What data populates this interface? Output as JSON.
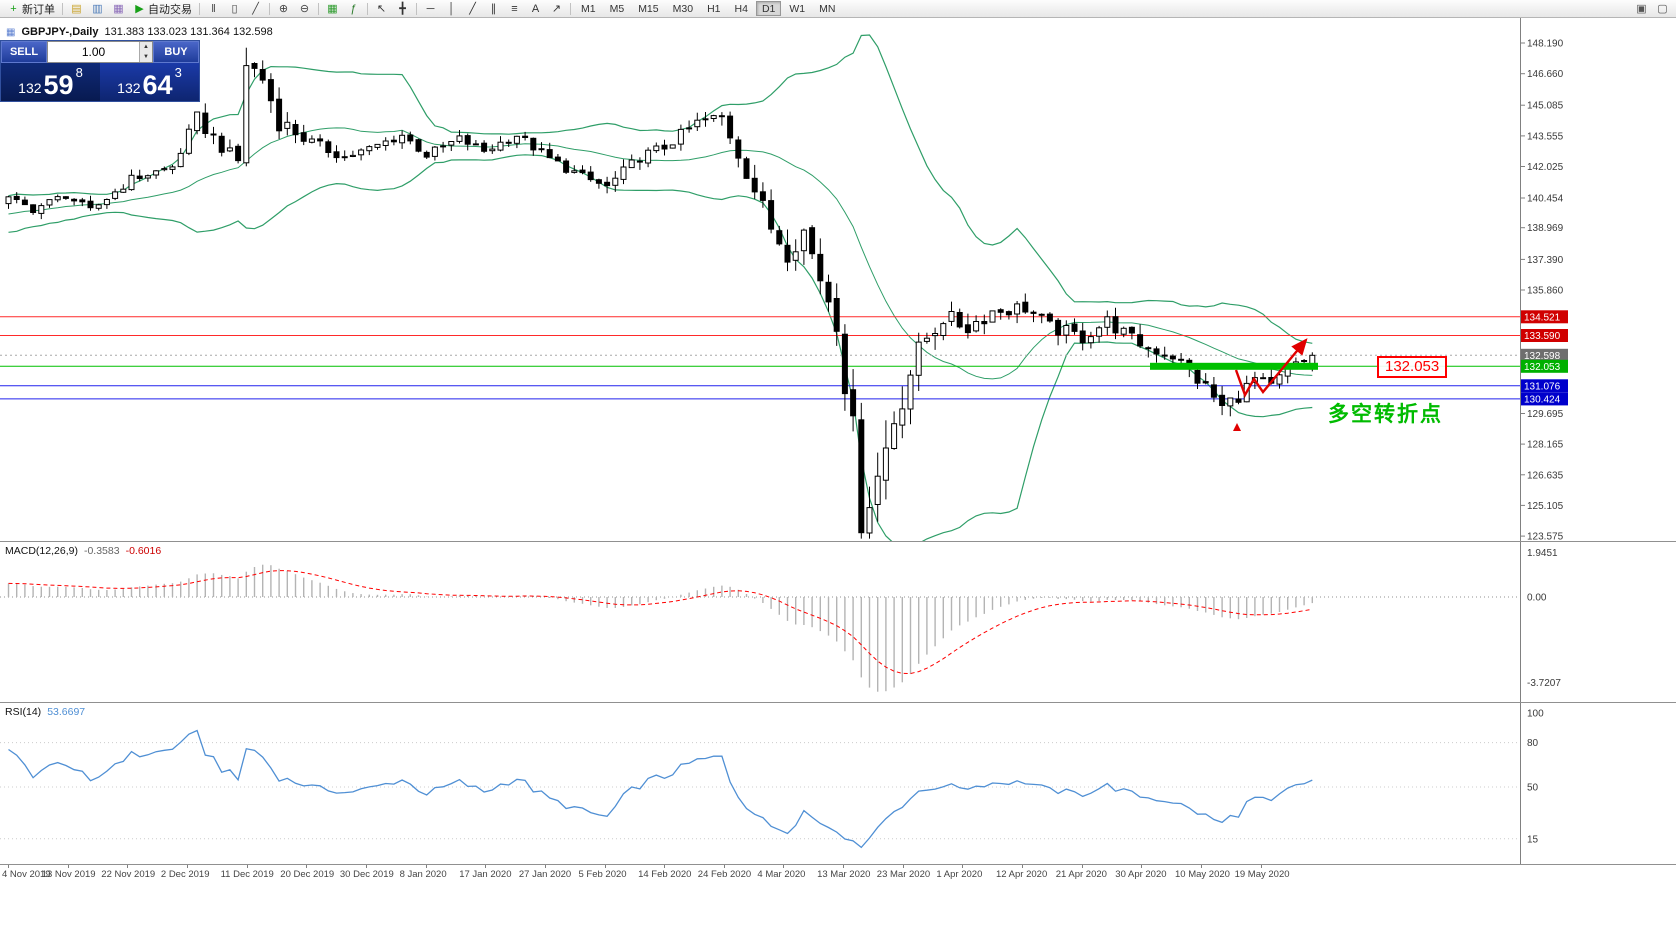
{
  "colors": {
    "band": "#2f9e68",
    "candle_up": "#ffffff",
    "candle_down": "#000000",
    "candle_border": "#000000",
    "macd_hist": "#b4b4b4",
    "macd_signal": "#ff0000",
    "rsi_line": "#4f8fd4",
    "axis_text": "#3a3a3a",
    "annotation_red": "#e00000"
  },
  "toolbar": {
    "items": [
      {
        "t": "btn",
        "base": "new-order",
        "glyph": "+",
        "gc": "#18a018",
        "label": "新订单"
      },
      {
        "t": "sep"
      },
      {
        "t": "ico",
        "base": "new-chart",
        "glyph": "▤",
        "gc": "#c9a227"
      },
      {
        "t": "ico",
        "base": "profiles",
        "glyph": "▥",
        "gc": "#4a7ab8"
      },
      {
        "t": "ico",
        "base": "data-window",
        "glyph": "▦",
        "gc": "#8a6ab8"
      },
      {
        "t": "btn",
        "base": "auto-trading",
        "glyph": "▶",
        "gc": "#18a018",
        "label": "自动交易"
      },
      {
        "t": "sep"
      },
      {
        "t": "ico",
        "base": "bar-chart",
        "glyph": "‖",
        "gc": "#444444"
      },
      {
        "t": "ico",
        "base": "candlestick-chart",
        "glyph": "▯",
        "gc": "#444444"
      },
      {
        "t": "ico",
        "base": "line-chart",
        "glyph": "╱",
        "gc": "#444444"
      },
      {
        "t": "sep"
      },
      {
        "t": "ico",
        "base": "zoom-in",
        "glyph": "⊕",
        "gc": "#444444"
      },
      {
        "t": "ico",
        "base": "zoom-out",
        "glyph": "⊖",
        "gc": "#444444"
      },
      {
        "t": "sep"
      },
      {
        "t": "ico",
        "base": "grid",
        "glyph": "▦",
        "gc": "#2a9a2a"
      },
      {
        "t": "ico",
        "base": "indicators",
        "glyph": "ƒ",
        "gc": "#2a7a2a"
      },
      {
        "t": "sep"
      },
      {
        "t": "ico",
        "base": "cursor",
        "glyph": "↖",
        "gc": "#333333"
      },
      {
        "t": "ico",
        "base": "crosshair",
        "glyph": "╋",
        "gc": "#333333"
      },
      {
        "t": "sep"
      },
      {
        "t": "ico",
        "base": "horizontal-line",
        "glyph": "─",
        "gc": "#333333"
      },
      {
        "t": "ico",
        "base": "vertical-line",
        "glyph": "│",
        "gc": "#333333"
      },
      {
        "t": "ico",
        "base": "trendline",
        "glyph": "╱",
        "gc": "#333333"
      },
      {
        "t": "ico",
        "base": "channel",
        "glyph": "∥",
        "gc": "#333333"
      },
      {
        "t": "ico",
        "base": "fibonacci",
        "glyph": "≡",
        "gc": "#333333"
      },
      {
        "t": "ico",
        "base": "text-label",
        "glyph": "A",
        "gc": "#333333"
      },
      {
        "t": "ico",
        "base": "arrows",
        "glyph": "↗",
        "gc": "#333333"
      },
      {
        "t": "sep"
      }
    ],
    "timeframes": [
      "M1",
      "M5",
      "M15",
      "M30",
      "H1",
      "H4",
      "D1",
      "W1",
      "MN"
    ],
    "active_timeframe": "D1",
    "right_items": [
      {
        "base": "tile-windows",
        "glyph": "▣",
        "gc": "#555555"
      },
      {
        "base": "new-window",
        "glyph": "▢",
        "gc": "#555555"
      }
    ]
  },
  "window": {
    "symbol_title": "GBPJPY-,Daily",
    "ohlc": "131.383 133.023 131.364 132.598"
  },
  "trade_panel": {
    "sell_label": "SELL",
    "buy_label": "BUY",
    "volume": "1.00",
    "sell_price": {
      "main": "132",
      "big": "59",
      "sup": "8"
    },
    "buy_price": {
      "main": "132",
      "big": "64",
      "sup": "3"
    }
  },
  "levels": [
    {
      "label": "134.521",
      "color": "#ff2a2a",
      "tag": "#d00000",
      "style": "solid"
    },
    {
      "label": "133.590",
      "color": "#ff2a2a",
      "tag": "#d00000",
      "style": "solid"
    },
    {
      "label": "132.598",
      "color": "#a8a8a8",
      "tag": "#6e6e6e",
      "style": "dot"
    },
    {
      "label": "132.053",
      "color": "#00c000",
      "tag": "#00b000",
      "style": "solid",
      "segment": [
        1150,
        1318
      ]
    },
    {
      "label": "131.076",
      "color": "#2222ee",
      "tag": "#0000cc",
      "style": "solid"
    },
    {
      "label": "130.424",
      "color": "#2222ee",
      "tag": "#0000cc",
      "style": "solid"
    }
  ],
  "price_axis": {
    "plain_labels": [
      "148.190",
      "146.660",
      "145.085",
      "143.555",
      "142.025",
      "140.454",
      "138.969",
      "137.390",
      "135.860",
      "129.695",
      "128.165",
      "126.635",
      "125.105",
      "123.575"
    ]
  },
  "annotations": {
    "price_note": "132.053",
    "turning_point_note": "多空转折点",
    "arrow_points": [
      [
        1236,
        352
      ],
      [
        1245,
        377
      ],
      [
        1254,
        361
      ],
      [
        1263,
        374
      ],
      [
        1306,
        322
      ]
    ],
    "low_marker": [
      1237,
      409
    ]
  },
  "indicators": {
    "macd": {
      "name": "MACD(12,26,9)",
      "value1": "-0.3583",
      "value2": "-0.6016",
      "axis_labels": [
        "1.9451",
        "0.00",
        "-3.7207"
      ]
    },
    "rsi": {
      "name": "RSI(14)",
      "value": "53.6697",
      "axis_labels": [
        "100",
        "80",
        "50",
        "15"
      ],
      "levels": [
        80,
        50,
        15
      ]
    }
  },
  "dates": [
    "4 Nov 2019",
    "13 Nov 2019",
    "22 Nov 2019",
    "2 Dec 2019",
    "11 Dec 2019",
    "20 Dec 2019",
    "30 Dec 2019",
    "8 Jan 2020",
    "17 Jan 2020",
    "27 Jan 2020",
    "5 Feb 2020",
    "14 Feb 2020",
    "24 Feb 2020",
    "4 Mar 2020",
    "13 Mar 2020",
    "23 Mar 2020",
    "1 Apr 2020",
    "12 Apr 2020",
    "21 Apr 2020",
    "30 Apr 2020",
    "10 May 2020",
    "19 May 2020"
  ],
  "chart_data": {
    "type": "candlestick",
    "symbol": "GBPJPY",
    "timeframe": "D1",
    "last_close": 132.598,
    "pre_candles": 40,
    "candles_count": 160,
    "price_range_visible": [
      123.575,
      148.19
    ],
    "horizontal_levels": [
      134.521,
      133.59,
      132.598,
      132.053,
      131.076,
      130.424
    ],
    "close_waypoints": [
      [
        -40,
        136.2,
        0.6
      ],
      [
        -25,
        138.5,
        0.55
      ],
      [
        -10,
        139.6,
        0.5
      ],
      [
        0,
        140.4,
        0.45
      ],
      [
        3,
        139.9,
        0.45
      ],
      [
        7,
        140.6,
        0.45
      ],
      [
        10,
        139.8,
        0.45
      ],
      [
        15,
        141.4,
        0.5
      ],
      [
        20,
        142.0,
        0.5
      ],
      [
        23,
        144.4,
        0.85
      ],
      [
        26,
        143.0,
        0.7
      ],
      [
        28,
        142.3,
        0.7
      ],
      [
        29,
        147.2,
        1.5
      ],
      [
        31,
        146.4,
        1.3
      ],
      [
        33,
        144.3,
        1.1
      ],
      [
        37,
        143.2,
        0.7
      ],
      [
        41,
        142.5,
        0.5
      ],
      [
        44,
        142.9,
        0.5
      ],
      [
        48,
        143.6,
        0.5
      ],
      [
        51,
        142.6,
        0.5
      ],
      [
        55,
        143.4,
        0.5
      ],
      [
        58,
        142.8,
        0.5
      ],
      [
        62,
        143.6,
        0.5
      ],
      [
        66,
        142.4,
        0.55
      ],
      [
        70,
        141.5,
        0.55
      ],
      [
        73,
        141.0,
        0.6
      ],
      [
        77,
        142.5,
        0.6
      ],
      [
        80,
        143.0,
        0.6
      ],
      [
        84,
        144.2,
        0.65
      ],
      [
        87,
        144.5,
        0.75
      ],
      [
        90,
        141.8,
        1.0
      ],
      [
        93,
        139.0,
        1.2
      ],
      [
        95,
        137.8,
        1.25
      ],
      [
        97,
        138.8,
        1.2
      ],
      [
        99,
        136.5,
        1.4
      ],
      [
        101,
        134.5,
        1.8
      ],
      [
        103,
        128.5,
        2.6
      ],
      [
        104,
        124.8,
        2.7
      ],
      [
        106,
        126.5,
        2.4
      ],
      [
        108,
        129.5,
        2.2
      ],
      [
        110,
        131.8,
        1.8
      ],
      [
        112,
        133.5,
        1.4
      ],
      [
        114,
        134.5,
        1.1
      ],
      [
        117,
        134.0,
        0.95
      ],
      [
        120,
        134.8,
        0.9
      ],
      [
        124,
        135.0,
        0.85
      ],
      [
        127,
        134.0,
        0.8
      ],
      [
        131,
        133.5,
        0.8
      ],
      [
        134,
        134.3,
        0.8
      ],
      [
        137,
        133.4,
        0.8
      ],
      [
        139,
        133.0,
        0.8
      ],
      [
        142,
        132.6,
        0.8
      ],
      [
        144,
        131.8,
        0.85
      ],
      [
        146,
        131.0,
        0.85
      ],
      [
        148,
        130.0,
        0.85
      ],
      [
        150,
        130.6,
        0.8
      ],
      [
        152,
        131.4,
        0.75
      ],
      [
        154,
        131.0,
        0.7
      ],
      [
        156,
        131.9,
        0.65
      ],
      [
        158,
        132.3,
        0.6
      ],
      [
        159,
        132.598,
        0.55
      ]
    ],
    "bollinger": {
      "period": 20,
      "deviation": 2
    },
    "macd_params": {
      "fast": 12,
      "slow": 26,
      "signal": 9
    },
    "rsi_period": 14
  }
}
